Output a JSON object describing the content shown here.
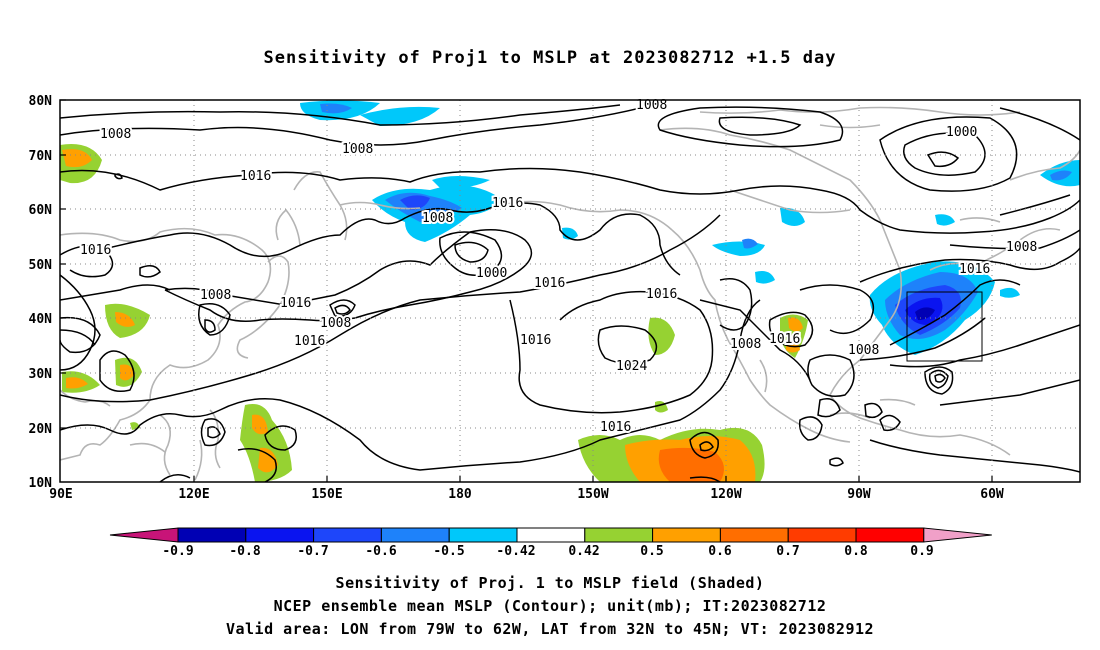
{
  "title": "Sensitivity of Proj1 to MSLP at 2023082712 +1.5 day",
  "map": {
    "lat_labels": [
      "80N",
      "70N",
      "60N",
      "50N",
      "40N",
      "30N",
      "20N",
      "10N"
    ],
    "lon_labels": [
      "90E",
      "120E",
      "150E",
      "180",
      "150W",
      "120W",
      "90W",
      "60W"
    ],
    "contour_labels": [
      {
        "text": "1008"
      },
      {
        "text": "1008"
      },
      {
        "text": "1008"
      },
      {
        "text": "1000"
      },
      {
        "text": "1016"
      },
      {
        "text": "1016"
      },
      {
        "text": "1008"
      },
      {
        "text": "1000"
      },
      {
        "text": "1016"
      },
      {
        "text": "1016"
      },
      {
        "text": "1008"
      },
      {
        "text": "1016"
      },
      {
        "text": "1008"
      },
      {
        "text": "1016"
      },
      {
        "text": "1016"
      },
      {
        "text": "1016"
      },
      {
        "text": "1024"
      },
      {
        "text": "1008"
      },
      {
        "text": "1016"
      },
      {
        "text": "1008"
      },
      {
        "text": "1016"
      },
      {
        "text": "1016"
      },
      {
        "text": "1008"
      }
    ],
    "valid_box": {
      "lon_from": "79W",
      "lon_to": "62W",
      "lat_from": "32N",
      "lat_to": "45N"
    }
  },
  "colorbar": {
    "labels": [
      "-0.9",
      "-0.8",
      "-0.7",
      "-0.6",
      "-0.5",
      "-0.42",
      "0.42",
      "0.5",
      "0.6",
      "0.7",
      "0.8",
      "0.9"
    ],
    "colors": [
      "#0000b4",
      "#0a14f0",
      "#1e46fa",
      "#1e82fa",
      "#00c8fa",
      "#ffffff",
      "#96d232",
      "#ffa000",
      "#ff6e00",
      "#ff3c00",
      "#ff0000"
    ],
    "low_tri_color": "#c81478",
    "high_tri_color": "#f0a0c8"
  },
  "captions": {
    "line1": "Sensitivity of Proj. 1 to MSLP field (Shaded)",
    "line2": "NCEP ensemble mean MSLP (Contour); unit(mb); IT:2023082712",
    "line3": "Valid area: LON from 79W to 62W, LAT from 32N to 45N; VT: 2023082912"
  }
}
